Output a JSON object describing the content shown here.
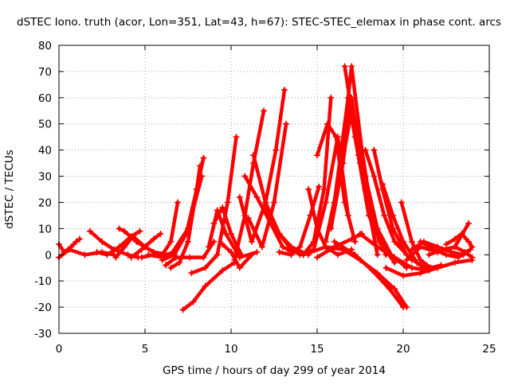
{
  "chart_data": {
    "type": "line",
    "title": "dSTEC Iono. truth (acor, Lon=351, Lat=43, h=67): STEC-STEC_elemax in phase cont. arcs",
    "xlabel": "GPS time / hours of day 299 of year 2014",
    "ylabel": "dSTEC  / TECUs",
    "xlim": [
      0,
      25
    ],
    "ylim": [
      -30,
      80
    ],
    "xticks": [
      0,
      5,
      10,
      15,
      20,
      25
    ],
    "yticks": [
      -30,
      -20,
      -10,
      0,
      10,
      20,
      30,
      40,
      50,
      60,
      70,
      80
    ],
    "grid": true,
    "marker": "plus",
    "color": "#ff0000",
    "series": [
      {
        "x": [
          0.0,
          0.3,
          0.7,
          1.0,
          1.2
        ],
        "y": [
          4,
          1,
          3,
          5,
          6
        ]
      },
      {
        "x": [
          0.0,
          0.6,
          1.5,
          2.5,
          3.2
        ],
        "y": [
          -1,
          2,
          0,
          1,
          0
        ]
      },
      {
        "x": [
          1.8,
          2.5,
          3.2,
          4.0,
          4.6
        ],
        "y": [
          9,
          5,
          2,
          0,
          -1
        ]
      },
      {
        "x": [
          2.2,
          2.8,
          3.5,
          4.2,
          4.7
        ],
        "y": [
          1,
          0,
          3,
          7,
          9
        ]
      },
      {
        "x": [
          3.3,
          3.8,
          4.3,
          5.0,
          5.8
        ],
        "y": [
          -1,
          3,
          7,
          3,
          0
        ]
      },
      {
        "x": [
          3.5,
          3.8,
          4.5,
          5.5,
          6.5
        ],
        "y": [
          10,
          9,
          5,
          1,
          0
        ]
      },
      {
        "x": [
          4.2,
          4.8,
          5.5,
          5.9
        ],
        "y": [
          -1,
          2,
          6,
          8
        ]
      },
      {
        "x": [
          4.8,
          5.5,
          6.0,
          6.5,
          6.9
        ],
        "y": [
          -1,
          0,
          0,
          5,
          20
        ]
      },
      {
        "x": [
          5.2,
          6.0,
          6.6,
          7.5,
          8.3
        ],
        "y": [
          0,
          -1,
          1,
          10,
          30
        ]
      },
      {
        "x": [
          6.0,
          6.7,
          7.4,
          8.0,
          8.4
        ],
        "y": [
          -2,
          0,
          8,
          25,
          37
        ]
      },
      {
        "x": [
          6.2,
          6.8,
          7.6,
          8.4,
          9.0
        ],
        "y": [
          -4,
          -1,
          -1,
          -1,
          5
        ]
      },
      {
        "x": [
          6.5,
          7.0,
          7.5,
          8.0,
          8.2
        ],
        "y": [
          -5,
          -3,
          5,
          25,
          34
        ]
      },
      {
        "x": [
          7.2,
          7.8,
          8.5,
          9.5,
          10.2
        ],
        "y": [
          -21,
          -18,
          -12,
          -6,
          -3
        ]
      },
      {
        "x": [
          7.7,
          8.5,
          9.2,
          9.8,
          10.3
        ],
        "y": [
          -7,
          -5,
          0,
          20,
          45
        ]
      },
      {
        "x": [
          8.7,
          9.2,
          9.7,
          10.5,
          11.5
        ],
        "y": [
          3,
          17,
          8,
          -1,
          1
        ]
      },
      {
        "x": [
          9.0,
          9.5,
          10.0,
          10.6
        ],
        "y": [
          12,
          18,
          8,
          0
        ]
      },
      {
        "x": [
          9.5,
          10.0,
          10.5,
          11.2
        ],
        "y": [
          4,
          1,
          -5,
          0
        ]
      },
      {
        "x": [
          10.2,
          10.8,
          11.3,
          11.9
        ],
        "y": [
          -2,
          15,
          35,
          55
        ]
      },
      {
        "x": [
          10.5,
          11.2,
          12.0,
          12.6,
          13.1
        ],
        "y": [
          22,
          5,
          20,
          40,
          63
        ]
      },
      {
        "x": [
          10.8,
          11.5,
          12.3,
          13.0,
          13.6
        ],
        "y": [
          30,
          22,
          12,
          3,
          1
        ]
      },
      {
        "x": [
          11.0,
          11.8,
          12.5,
          13.2
        ],
        "y": [
          14,
          3,
          20,
          50
        ]
      },
      {
        "x": [
          11.3,
          12.0,
          12.8,
          13.5,
          14.2
        ],
        "y": [
          38,
          20,
          8,
          2,
          0
        ]
      },
      {
        "x": [
          12.0,
          12.8,
          13.5,
          14.5
        ],
        "y": [
          18,
          8,
          3,
          0
        ]
      },
      {
        "x": [
          12.8,
          13.5,
          14.0,
          14.6,
          15.1
        ],
        "y": [
          1,
          0,
          3,
          15,
          26
        ]
      },
      {
        "x": [
          13.3,
          14.2,
          14.8,
          15.4,
          15.8
        ],
        "y": [
          2,
          0,
          5,
          25,
          60
        ]
      },
      {
        "x": [
          14.0,
          14.8,
          15.5,
          16.2,
          16.8
        ],
        "y": [
          0,
          2,
          20,
          45,
          15
        ]
      },
      {
        "x": [
          14.5,
          15.0,
          15.5,
          16.2,
          17.0
        ],
        "y": [
          25,
          10,
          3,
          0,
          2
        ]
      },
      {
        "x": [
          15.0,
          15.6,
          16.1,
          16.6,
          17.2
        ],
        "y": [
          38,
          50,
          45,
          20,
          5
        ]
      },
      {
        "x": [
          15.5,
          16.3,
          17.0,
          17.6,
          18.3
        ],
        "y": [
          5,
          30,
          72,
          40,
          10
        ]
      },
      {
        "x": [
          15.8,
          16.5,
          17.0,
          17.5,
          18.5
        ],
        "y": [
          10,
          35,
          60,
          35,
          0
        ]
      },
      {
        "x": [
          16.0,
          16.8,
          17.2,
          18.0,
          19.0
        ],
        "y": [
          20,
          60,
          45,
          15,
          0
        ]
      },
      {
        "x": [
          16.3,
          17.0,
          17.8,
          18.6,
          19.5
        ],
        "y": [
          30,
          55,
          25,
          5,
          -3
        ]
      },
      {
        "x": [
          16.6,
          17.4,
          18.2,
          19.0
        ],
        "y": [
          72,
          38,
          15,
          0
        ]
      },
      {
        "x": [
          17.3,
          17.8,
          18.5,
          19.3,
          20.2
        ],
        "y": [
          52,
          30,
          10,
          0,
          -5
        ]
      },
      {
        "x": [
          17.8,
          18.3,
          18.9,
          19.5,
          20.5
        ],
        "y": [
          40,
          30,
          15,
          5,
          -2
        ]
      },
      {
        "x": [
          18.3,
          18.8,
          19.4,
          20.2,
          21.0
        ],
        "y": [
          40,
          25,
          10,
          0,
          -4
        ]
      },
      {
        "x": [
          18.8,
          19.4,
          20.0,
          20.8,
          21.5
        ],
        "y": [
          27,
          15,
          5,
          -3,
          -6
        ]
      },
      {
        "x": [
          19.9,
          20.5,
          21.0,
          21.6,
          22.2
        ],
        "y": [
          20,
          5,
          -2,
          -5,
          -4
        ]
      },
      {
        "x": [
          14.2,
          15.5,
          16.5,
          17.5,
          18.5,
          19.5,
          20.2
        ],
        "y": [
          0,
          3,
          2,
          -2,
          -7,
          -13,
          -20
        ]
      },
      {
        "x": [
          16.0,
          17.2,
          18.2,
          19.2,
          20.0
        ],
        "y": [
          5,
          0,
          -6,
          -13,
          -20
        ]
      },
      {
        "x": [
          15.0,
          16.0,
          17.0,
          17.6
        ],
        "y": [
          -1,
          3,
          6,
          8
        ]
      },
      {
        "x": [
          17.5,
          18.5,
          19.5,
          20.5,
          21.5
        ],
        "y": [
          8,
          3,
          -1,
          -5,
          -6
        ]
      },
      {
        "x": [
          19.0,
          20.0,
          21.0,
          22.0,
          23.0,
          24.0
        ],
        "y": [
          -5,
          -8,
          -7,
          -5,
          -3,
          -2
        ]
      },
      {
        "x": [
          20.2,
          21.0,
          22.0,
          23.0,
          23.8
        ],
        "y": [
          -2,
          3,
          1,
          3,
          12
        ]
      },
      {
        "x": [
          20.5,
          21.2,
          22.0,
          22.8,
          23.5
        ],
        "y": [
          2,
          5,
          3,
          1,
          0
        ]
      },
      {
        "x": [
          21.0,
          21.8,
          22.5,
          23.2,
          23.9
        ],
        "y": [
          5,
          2,
          0,
          -1,
          2
        ]
      },
      {
        "x": [
          22.5,
          23.0,
          23.4,
          23.8,
          24.0
        ],
        "y": [
          4,
          6,
          8,
          5,
          3
        ]
      },
      {
        "x": [
          21.5,
          22.3,
          23.0,
          23.6,
          24.0
        ],
        "y": [
          0,
          2,
          3,
          1,
          -1
        ]
      }
    ]
  }
}
